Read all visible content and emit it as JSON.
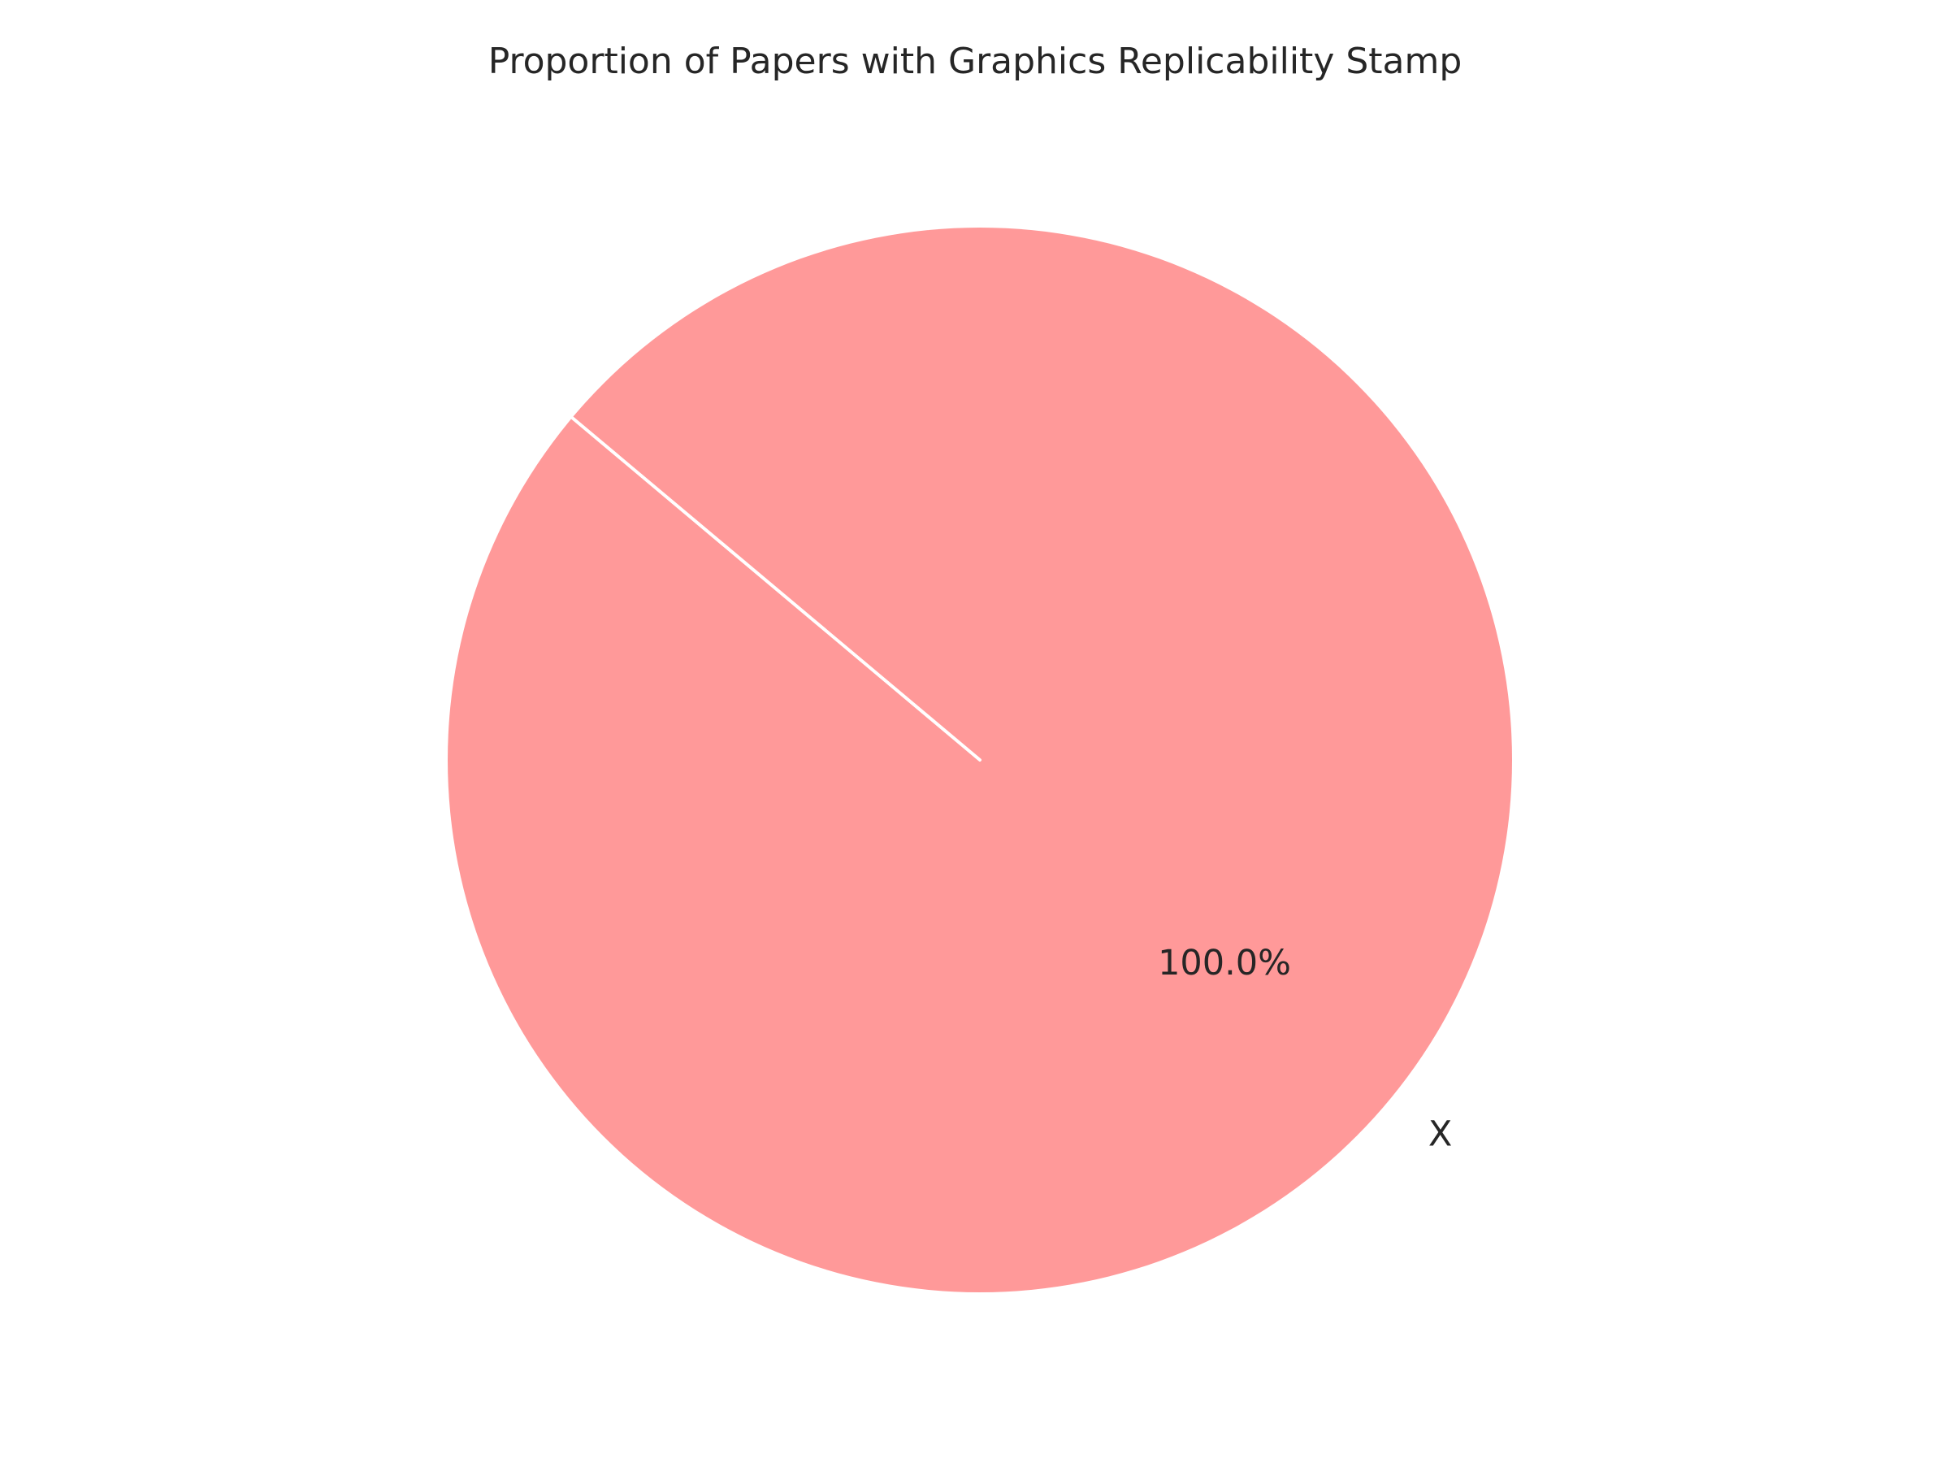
{
  "chart_data": {
    "type": "pie",
    "title": "Proportion of Papers with Graphics Replicability Stamp",
    "start_angle_deg": 140,
    "slices": [
      {
        "label": "X",
        "value": 100,
        "pct_label": "100.0%",
        "color": "#ff9999"
      }
    ],
    "edge_color": "#ffffff",
    "background": "#ffffff"
  }
}
